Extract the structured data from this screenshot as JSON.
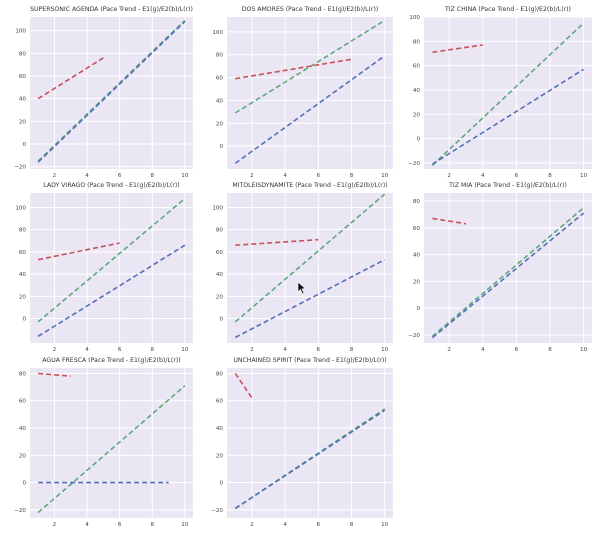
{
  "colors": {
    "plot_bg": "#eae6f4",
    "grid": "#ffffff",
    "blue": "#5470b5",
    "green": "#5ea87a",
    "red": "#c8505a"
  },
  "chart_data": [
    {
      "type": "line",
      "title": "SUPERSONIC AGENDA (Pace Trend - E1(g)/E2(b)/L(r))",
      "xlim": [
        0.5,
        10.5
      ],
      "ylim": [
        -22,
        112
      ],
      "xticks": [
        2,
        4,
        6,
        8,
        10
      ],
      "yticks": [
        -20,
        0,
        20,
        40,
        60,
        80,
        100
      ],
      "series": [
        {
          "name": "E1",
          "color": "green",
          "x": [
            1,
            10
          ],
          "y": [
            -15,
            109
          ]
        },
        {
          "name": "E2",
          "color": "blue",
          "x": [
            1,
            10
          ],
          "y": [
            -16,
            108
          ]
        },
        {
          "name": "L",
          "color": "red",
          "x": [
            1,
            5
          ],
          "y": [
            40,
            76
          ]
        }
      ]
    },
    {
      "type": "line",
      "title": "DOS AMORES (Pace Trend - E1(g)/E2(b)/L(r))",
      "xlim": [
        0.5,
        10.5
      ],
      "ylim": [
        -20,
        113
      ],
      "xticks": [
        2,
        4,
        6,
        8,
        10
      ],
      "yticks": [
        0,
        20,
        40,
        60,
        80,
        100
      ],
      "series": [
        {
          "name": "E1",
          "color": "green",
          "x": [
            1,
            10
          ],
          "y": [
            29,
            110
          ]
        },
        {
          "name": "E2",
          "color": "blue",
          "x": [
            1,
            10
          ],
          "y": [
            -15,
            79
          ]
        },
        {
          "name": "L",
          "color": "red",
          "x": [
            1,
            8
          ],
          "y": [
            59,
            76
          ]
        }
      ]
    },
    {
      "type": "line",
      "title": "TIZ CHINA (Pace Trend - E1(g)/E2(b)/L(r))",
      "xlim": [
        0.5,
        10.5
      ],
      "ylim": [
        -25,
        100
      ],
      "xticks": [
        2,
        4,
        6,
        8,
        10
      ],
      "yticks": [
        -20,
        0,
        20,
        40,
        60,
        80,
        100
      ],
      "series": [
        {
          "name": "E1",
          "color": "green",
          "x": [
            1,
            10
          ],
          "y": [
            -22,
            95
          ]
        },
        {
          "name": "E2",
          "color": "blue",
          "x": [
            1,
            10
          ],
          "y": [
            -21,
            57
          ]
        },
        {
          "name": "L",
          "color": "red",
          "x": [
            1,
            4
          ],
          "y": [
            71,
            77
          ]
        }
      ]
    },
    {
      "type": "line",
      "title": "LADY VIRAGO (Pace Trend - E1(g)/E2(b)/L(r))",
      "xlim": [
        0.5,
        10.5
      ],
      "ylim": [
        -22,
        113
      ],
      "xticks": [
        2,
        4,
        6,
        8,
        10
      ],
      "yticks": [
        0,
        20,
        40,
        60,
        80,
        100
      ],
      "series": [
        {
          "name": "E1",
          "color": "green",
          "x": [
            1,
            10
          ],
          "y": [
            -3,
            108
          ]
        },
        {
          "name": "E2",
          "color": "blue",
          "x": [
            1,
            10
          ],
          "y": [
            -16,
            66
          ]
        },
        {
          "name": "L",
          "color": "red",
          "x": [
            1,
            6
          ],
          "y": [
            53,
            68
          ]
        }
      ]
    },
    {
      "type": "line",
      "title": "MITOLEISDYNAMITE (Pace Trend - E1(g)/E2(b)/L(r))",
      "xlim": [
        0.5,
        10.5
      ],
      "ylim": [
        -22,
        113
      ],
      "xticks": [
        2,
        4,
        6,
        8,
        10
      ],
      "yticks": [
        0,
        20,
        40,
        60,
        80,
        100
      ],
      "series": [
        {
          "name": "E1",
          "color": "green",
          "x": [
            1,
            10
          ],
          "y": [
            -3,
            112
          ]
        },
        {
          "name": "E2",
          "color": "blue",
          "x": [
            1,
            10
          ],
          "y": [
            -17,
            53
          ]
        },
        {
          "name": "L",
          "color": "red",
          "x": [
            1,
            6
          ],
          "y": [
            66,
            71
          ]
        }
      ]
    },
    {
      "type": "line",
      "title": "TIZ MIA (Pace Trend - E1(g)/E2(b)/L(r))",
      "xlim": [
        0.5,
        10.5
      ],
      "ylim": [
        -26,
        86
      ],
      "xticks": [
        2,
        4,
        6,
        8,
        10
      ],
      "yticks": [
        -20,
        0,
        20,
        40,
        60,
        80
      ],
      "series": [
        {
          "name": "E1",
          "color": "green",
          "x": [
            1,
            10
          ],
          "y": [
            -21,
            75
          ]
        },
        {
          "name": "E2",
          "color": "blue",
          "x": [
            1,
            10
          ],
          "y": [
            -22,
            71
          ]
        },
        {
          "name": "L",
          "color": "red",
          "x": [
            1,
            3
          ],
          "y": [
            67,
            63
          ]
        }
      ]
    },
    {
      "type": "line",
      "title": "AGUA FRESCA (Pace Trend - E1(g)/E2(b)/L(r))",
      "xlim": [
        0.5,
        10.5
      ],
      "ylim": [
        -26,
        84
      ],
      "xticks": [
        2,
        4,
        6,
        8,
        10
      ],
      "yticks": [
        -20,
        0,
        20,
        40,
        60,
        80
      ],
      "series": [
        {
          "name": "E1",
          "color": "green",
          "x": [
            1,
            10
          ],
          "y": [
            -22,
            71
          ]
        },
        {
          "name": "E2",
          "color": "blue",
          "x": [
            1,
            9
          ],
          "y": [
            0,
            0
          ]
        },
        {
          "name": "L",
          "color": "red",
          "x": [
            1,
            3
          ],
          "y": [
            80,
            78
          ]
        }
      ]
    },
    {
      "type": "line",
      "title": "UNCHAINED SPIRIT (Pace Trend - E1(g)/E2(b)/L(r))",
      "xlim": [
        0.5,
        10.5
      ],
      "ylim": [
        -26,
        84
      ],
      "xticks": [
        2,
        4,
        6,
        8,
        10
      ],
      "yticks": [
        -20,
        0,
        20,
        40,
        60,
        80
      ],
      "series": [
        {
          "name": "E1",
          "color": "green",
          "x": [
            1,
            10
          ],
          "y": [
            -19,
            54
          ]
        },
        {
          "name": "E2",
          "color": "blue",
          "x": [
            1,
            10
          ],
          "y": [
            -19,
            53
          ]
        },
        {
          "name": "L",
          "color": "red",
          "x": [
            1,
            2
          ],
          "y": [
            80,
            62
          ]
        }
      ]
    }
  ]
}
